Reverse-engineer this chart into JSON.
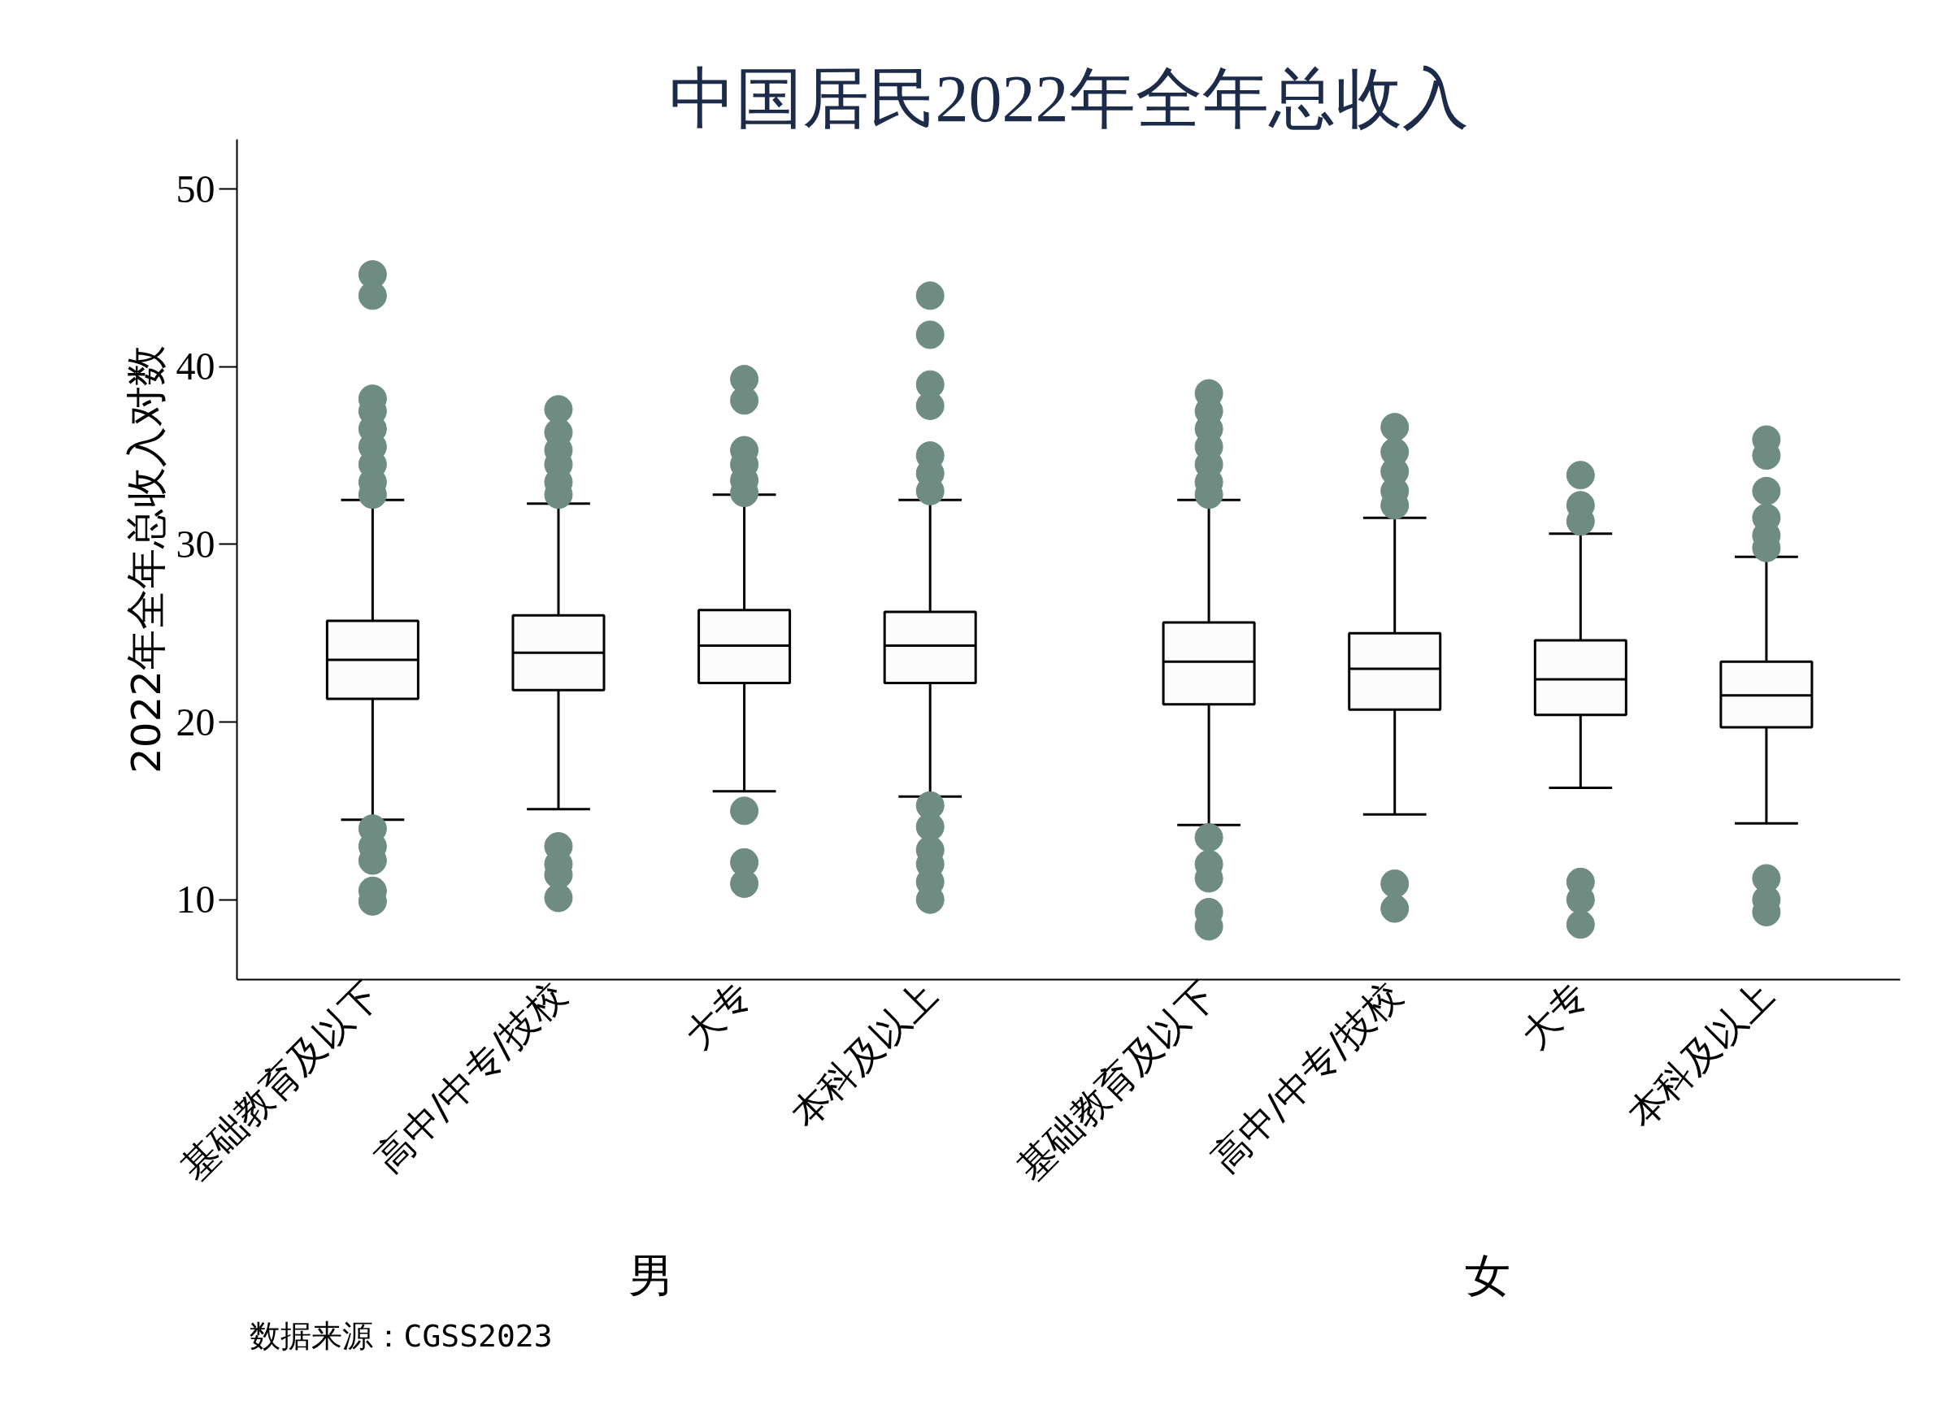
{
  "chart_data": {
    "type": "box",
    "title": "中国居民2022年全年总收入",
    "ylabel": "2022年全年总收入对数",
    "categories": [
      "基础教育及以下",
      "高中/中专/技校",
      "大专",
      "本科及以上",
      "基础教育及以下",
      "高中/中专/技校",
      "大专",
      "本科及以上"
    ],
    "ylim": [
      5.5,
      52.8
    ],
    "yticks": [
      10,
      20,
      30,
      40,
      50
    ],
    "annotations": [
      "男",
      "女",
      "数据来源：CGSS2023"
    ],
    "series": [
      {
        "boxes": [
          {
            "low": 14.5,
            "q1": 21.3,
            "median": 23.5,
            "q3": 25.7,
            "high": 32.5,
            "outliers": [
              45.2,
              44.0,
              38.2,
              37.5,
              36.5,
              35.5,
              34.5,
              33.5,
              32.8,
              14.0,
              13.0,
              12.2,
              10.5,
              9.9
            ]
          },
          {
            "low": 15.1,
            "q1": 21.8,
            "median": 23.9,
            "q3": 26.0,
            "high": 32.3,
            "outliers": [
              37.6,
              36.3,
              35.3,
              34.5,
              33.5,
              32.8,
              13.0,
              12.0,
              11.4,
              10.1
            ]
          },
          {
            "low": 16.1,
            "q1": 22.2,
            "median": 24.3,
            "q3": 26.3,
            "high": 32.8,
            "outliers": [
              39.3,
              38.1,
              35.3,
              34.5,
              33.6,
              32.9,
              15.0,
              12.1,
              10.9
            ]
          },
          {
            "low": 15.8,
            "q1": 22.2,
            "median": 24.3,
            "q3": 26.2,
            "high": 32.5,
            "outliers": [
              44.0,
              41.8,
              39.0,
              37.8,
              35.0,
              34.0,
              33.0,
              15.3,
              14.1,
              12.8,
              12.0,
              11.0,
              10.0
            ]
          },
          {
            "low": 14.2,
            "q1": 21.0,
            "median": 23.4,
            "q3": 25.6,
            "high": 32.5,
            "outliers": [
              38.5,
              37.5,
              36.5,
              35.5,
              34.5,
              33.5,
              32.8,
              13.5,
              12.0,
              11.2,
              9.3,
              8.5
            ]
          },
          {
            "low": 14.8,
            "q1": 20.7,
            "median": 23.0,
            "q3": 25.0,
            "high": 31.5,
            "outliers": [
              36.6,
              35.2,
              34.1,
              33.0,
              32.2,
              10.9,
              9.5
            ]
          },
          {
            "low": 16.3,
            "q1": 20.4,
            "median": 22.4,
            "q3": 24.6,
            "high": 30.6,
            "outliers": [
              33.9,
              32.2,
              31.3,
              11.0,
              10.0,
              8.6
            ]
          },
          {
            "low": 14.3,
            "q1": 19.7,
            "median": 21.5,
            "q3": 23.4,
            "high": 29.3,
            "outliers": [
              35.9,
              35.0,
              33.0,
              31.5,
              30.5,
              29.8,
              11.2,
              10.0,
              9.3
            ]
          }
        ]
      }
    ]
  }
}
